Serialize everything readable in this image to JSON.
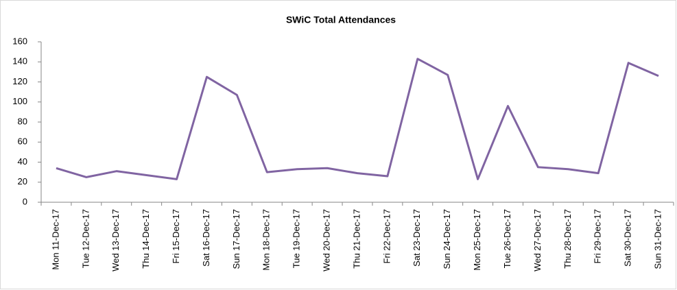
{
  "chart_data": {
    "type": "line",
    "title": "SWiC Total Attendances",
    "categories": [
      "Mon 11-Dec-17",
      "Tue 12-Dec-17",
      "Wed 13-Dec-17",
      "Thu 14-Dec-17",
      "Fri 15-Dec-17",
      "Sat 16-Dec-17",
      "Sun 17-Dec-17",
      "Mon 18-Dec-17",
      "Tue 19-Dec-17",
      "Wed 20-Dec-17",
      "Thu 21-Dec-17",
      "Fri 22-Dec-17",
      "Sat 23-Dec-17",
      "Sun 24-Dec-17",
      "Mon 25-Dec-17",
      "Tue 26-Dec-17",
      "Wed 27-Dec-17",
      "Thu 28-Dec-17",
      "Fri 29-Dec-17",
      "Sat 30-Dec-17",
      "Sun 31-Dec-17"
    ],
    "values": [
      34,
      25,
      31,
      27,
      23,
      125,
      107,
      30,
      33,
      34,
      29,
      26,
      143,
      127,
      23,
      96,
      35,
      33,
      29,
      139,
      126
    ],
    "color": "#8064a2",
    "ylim": [
      0,
      160
    ],
    "yticks": [
      0,
      20,
      40,
      60,
      80,
      100,
      120,
      140,
      160
    ],
    "grid": false
  }
}
